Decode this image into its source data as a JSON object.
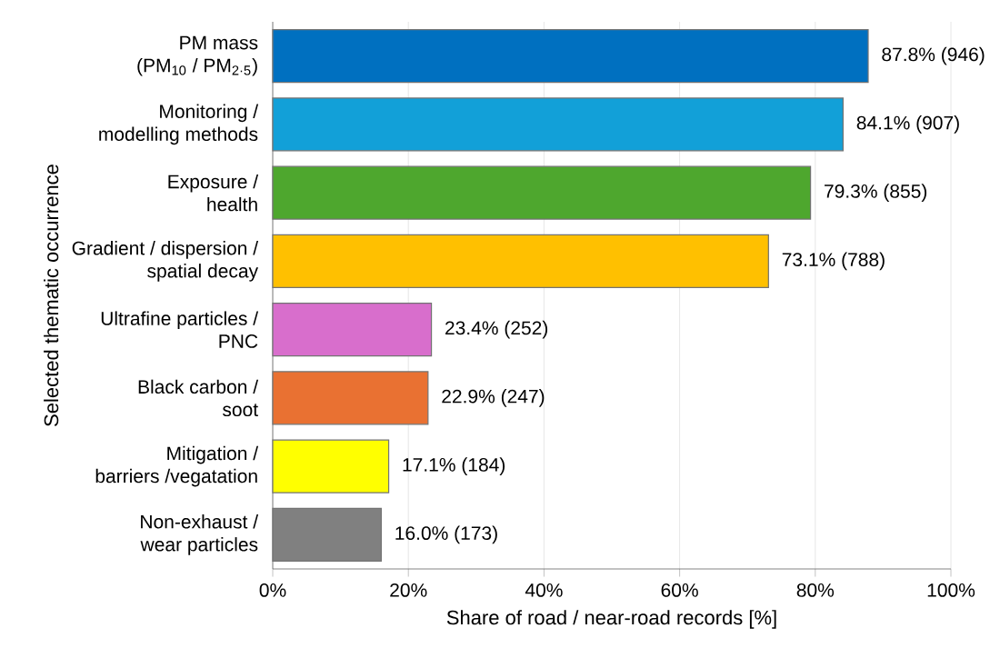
{
  "chart_data": {
    "type": "bar",
    "orientation": "horizontal",
    "xlabel": "Share of road / near-road records [%]",
    "ylabel": "Selected thematic occurrence",
    "categories": [
      "PM mass\n(PM$_{10}$ / PM$_{2·5}$)",
      "Monitoring /\nmodelling methods",
      "Exposure /\nhealth",
      "Gradient / dispersion /\nspatial decay",
      "Ultrafine particles /\nPNC",
      "Black carbon /\nsoot",
      "Mitigation /\nbarriers /vegatation",
      "Non-exhaust /\nwear particles"
    ],
    "values": [
      87.8,
      84.1,
      79.3,
      73.1,
      23.4,
      22.9,
      17.1,
      16.0
    ],
    "colors": [
      "#0070c0",
      "#12a0d8",
      "#4ea72e",
      "#ffc000",
      "#d86ecc",
      "#e97132",
      "#ffff00",
      "#808080"
    ],
    "value_labels": [
      "87.8% (946)",
      "84.1% (907)",
      "79.3% (855)",
      "73.1% (788)",
      "23.4% (252)",
      "22.9% (247)",
      "17.1% (184)",
      "16.0% (173)"
    ],
    "xlim": [
      0,
      100
    ],
    "xticks": [
      {
        "value": 0,
        "label": "0%"
      },
      {
        "value": 20,
        "label": "20%"
      },
      {
        "value": 40,
        "label": "40%"
      },
      {
        "value": 60,
        "label": "60%"
      },
      {
        "value": 80,
        "label": "80%"
      },
      {
        "value": 100,
        "label": "100%"
      }
    ],
    "grid": "x"
  }
}
